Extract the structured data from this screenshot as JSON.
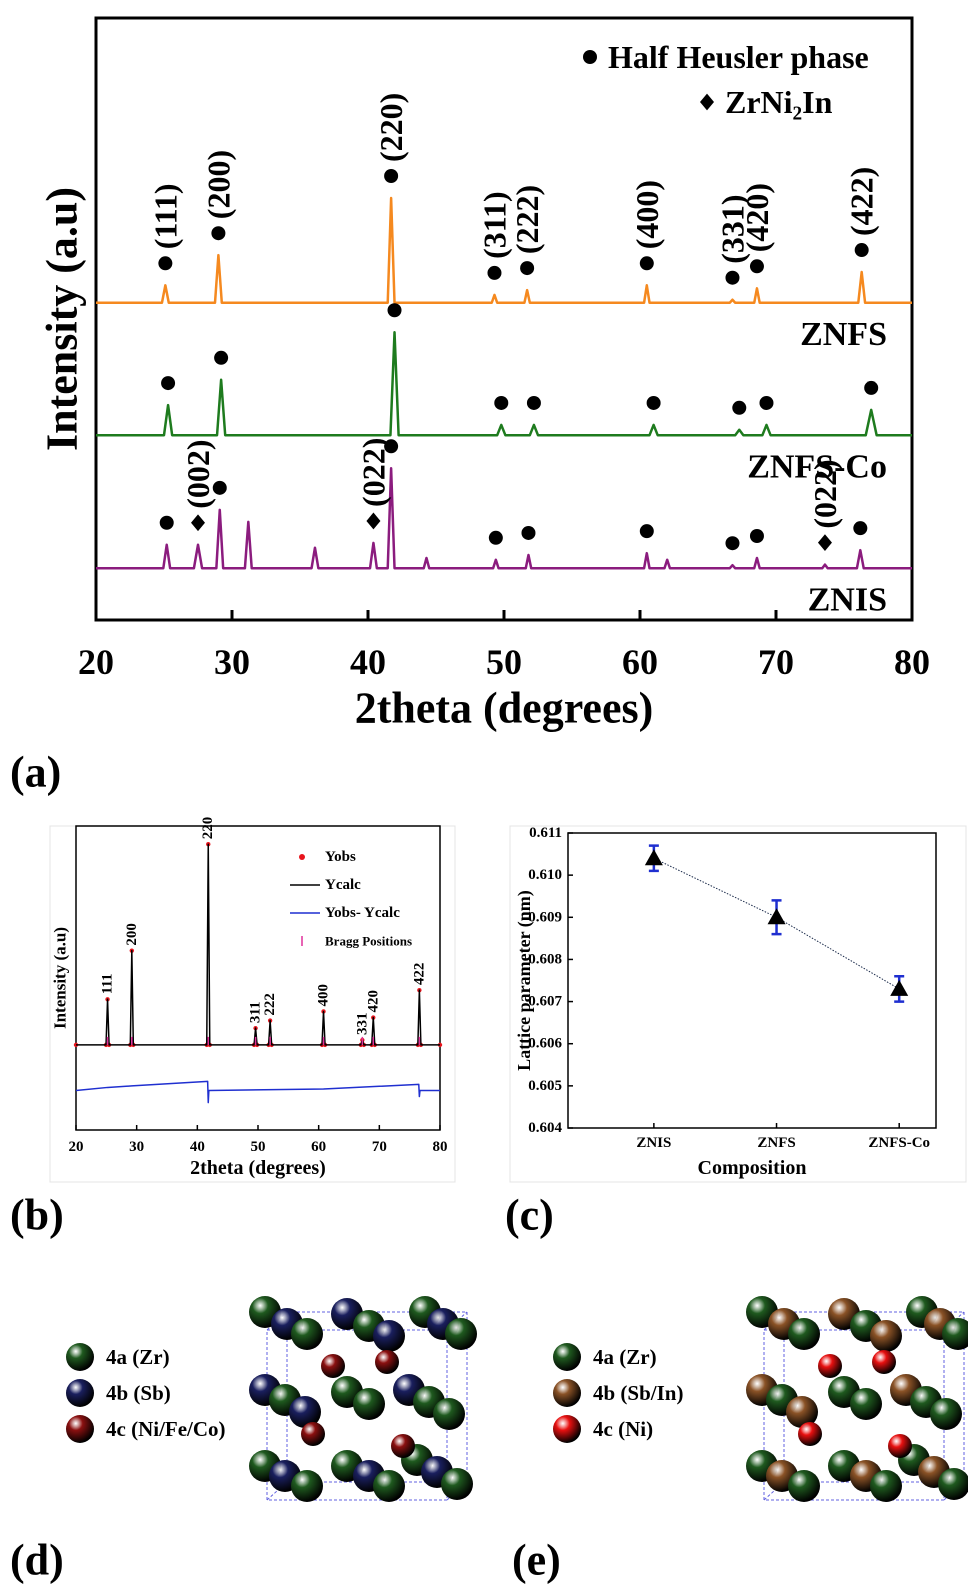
{
  "chart_data": [
    {
      "type": "line",
      "panel_label": "(a)",
      "xlabel": "2theta (degrees)",
      "ylabel": "Intensity (a.u)",
      "xlim": [
        20,
        80
      ],
      "xticks": [
        20,
        30,
        40,
        50,
        60,
        70,
        80
      ],
      "ylim": [
        0,
        100
      ],
      "legend_position": "upper right",
      "legend": [
        {
          "name": "Half Heusler phase",
          "marker": "circle"
        },
        {
          "name": "ZrNi₂In",
          "marker": "diamond"
        }
      ],
      "series": [
        {
          "name": "ZNFS",
          "color": "#f5891f",
          "x": [
            20,
            24.85,
            25.1,
            25.35,
            28.75,
            29,
            29.25,
            41.45,
            41.7,
            41.95,
            49.1,
            49.3,
            49.5,
            51.5,
            51.7,
            51.9,
            60.3,
            60.5,
            60.7,
            66.6,
            66.8,
            67.0,
            68.4,
            68.6,
            68.8,
            76.05,
            76.3,
            76.55,
            80
          ],
          "values": [
            52.7,
            52.7,
            55.6,
            52.7,
            52.7,
            60.6,
            52.7,
            52.7,
            70.1,
            52.7,
            52.7,
            54,
            52.7,
            52.7,
            54.8,
            52.7,
            52.7,
            55.6,
            52.7,
            52.7,
            53.2,
            52.7,
            52.7,
            55.1,
            52.7,
            52.7,
            57.8,
            52.7,
            52.7
          ],
          "peaks": [
            {
              "x": 25.1,
              "marker": "circle",
              "label": "(111)"
            },
            {
              "x": 29,
              "marker": "circle",
              "label": "(200)"
            },
            {
              "x": 41.7,
              "marker": "circle",
              "label": "(220)"
            },
            {
              "x": 49.3,
              "marker": "circle",
              "label": "(311)"
            },
            {
              "x": 51.7,
              "marker": "circle",
              "label": "(222)"
            },
            {
              "x": 60.5,
              "marker": "circle",
              "label": "(400)"
            },
            {
              "x": 66.8,
              "marker": "circle",
              "label": "(331)"
            },
            {
              "x": 68.6,
              "marker": "circle",
              "label": "(420)"
            },
            {
              "x": 76.3,
              "marker": "circle",
              "label": "(422)"
            }
          ]
        },
        {
          "name": "ZNFS-Co",
          "color": "#1e7b1e",
          "x": [
            20,
            25,
            25.3,
            25.6,
            28.9,
            29.2,
            29.5,
            41.65,
            41.95,
            42.25,
            49.5,
            49.8,
            50.1,
            51.9,
            52.2,
            52.5,
            60.7,
            61,
            61.3,
            67,
            67.3,
            67.6,
            69,
            69.3,
            69.6,
            76.6,
            77,
            77.4,
            80
          ],
          "values": [
            30.7,
            30.7,
            35.7,
            30.7,
            30.7,
            39.9,
            30.7,
            30.7,
            47.8,
            30.7,
            30.7,
            32.4,
            30.7,
            30.7,
            32.4,
            30.7,
            30.7,
            32.4,
            30.7,
            30.7,
            31.6,
            30.7,
            30.7,
            32.4,
            30.7,
            30.7,
            34.9,
            30.7,
            30.7
          ],
          "peaks": [
            {
              "x": 25.3,
              "marker": "circle"
            },
            {
              "x": 29.2,
              "marker": "circle"
            },
            {
              "x": 41.95,
              "marker": "circle"
            },
            {
              "x": 49.8,
              "marker": "circle"
            },
            {
              "x": 52.2,
              "marker": "circle"
            },
            {
              "x": 61,
              "marker": "circle"
            },
            {
              "x": 67.3,
              "marker": "circle"
            },
            {
              "x": 69.3,
              "marker": "circle"
            },
            {
              "x": 77,
              "marker": "circle"
            }
          ]
        },
        {
          "name": "ZNIS",
          "color": "#8b1c7e",
          "x": [
            20,
            24.95,
            25.2,
            25.45,
            27.2,
            27.5,
            27.8,
            28.85,
            29.1,
            29.35,
            30.95,
            31.2,
            31.45,
            35.85,
            36.1,
            36.35,
            40.15,
            40.4,
            40.65,
            41.45,
            41.7,
            41.95,
            44.1,
            44.3,
            44.5,
            49.2,
            49.4,
            49.6,
            51.6,
            51.8,
            52,
            60.3,
            60.5,
            60.7,
            61.8,
            62,
            62.2,
            66.6,
            66.8,
            67,
            68.4,
            68.6,
            68.8,
            73.4,
            73.6,
            73.8,
            75.95,
            76.2,
            76.45,
            80
          ],
          "values": [
            8.6,
            8.6,
            12.5,
            8.6,
            8.6,
            12.5,
            8.6,
            8.6,
            18.3,
            8.6,
            8.6,
            16.3,
            8.6,
            8.6,
            12,
            8.6,
            8.6,
            12.8,
            8.6,
            8.6,
            25.2,
            8.6,
            8.6,
            10.3,
            8.6,
            8.6,
            10,
            8.6,
            8.6,
            10.8,
            8.6,
            8.6,
            11.1,
            8.6,
            8.6,
            10,
            8.6,
            8.6,
            9.1,
            8.6,
            8.6,
            10.3,
            8.6,
            8.6,
            9.2,
            8.6,
            8.6,
            11.6,
            8.6,
            8.6
          ],
          "peaks": [
            {
              "x": 25.2,
              "marker": "circle"
            },
            {
              "x": 27.5,
              "marker": "diamond",
              "label": "(002)"
            },
            {
              "x": 29.1,
              "marker": "circle"
            },
            {
              "x": 40.4,
              "marker": "diamond",
              "label": "(022)"
            },
            {
              "x": 41.7,
              "marker": "circle"
            },
            {
              "x": 49.4,
              "marker": "circle"
            },
            {
              "x": 51.8,
              "marker": "circle"
            },
            {
              "x": 60.5,
              "marker": "circle"
            },
            {
              "x": 66.8,
              "marker": "circle"
            },
            {
              "x": 68.6,
              "marker": "circle"
            },
            {
              "x": 73.6,
              "marker": "diamond",
              "label": "(022)"
            },
            {
              "x": 76.2,
              "marker": "circle"
            }
          ]
        }
      ]
    },
    {
      "type": "line",
      "panel_label": "(b)",
      "xlabel": "2theta (degrees)",
      "ylabel": "Intensity (a.u)",
      "xlim": [
        20,
        80
      ],
      "xticks": [
        20,
        30,
        40,
        50,
        60,
        70,
        80
      ],
      "ylim": [
        0,
        100
      ],
      "legend_position": "upper right",
      "series": [
        {
          "name": "Yobs",
          "style": "points",
          "color": "#e8141c",
          "x": [
            20,
            24.95,
            25.2,
            25.45,
            28.95,
            29.2,
            29.45,
            41.55,
            41.8,
            42.05,
            49.35,
            49.6,
            49.85,
            51.75,
            52,
            52.25,
            60.55,
            60.8,
            61.05,
            66.95,
            67.2,
            67.45,
            68.75,
            69,
            69.25,
            76.35,
            76.6,
            76.85,
            80
          ],
          "values": [
            28,
            28,
            43,
            28,
            28,
            59,
            28,
            28,
            94,
            28,
            28,
            33.5,
            28,
            28,
            36,
            28,
            28,
            39,
            28,
            28,
            29.6,
            28,
            28,
            37,
            28,
            28,
            46,
            28,
            28
          ]
        },
        {
          "name": "Ycalc",
          "style": "line",
          "color": "#000000",
          "x": [
            20,
            24.95,
            25.2,
            25.45,
            28.95,
            29.2,
            29.45,
            41.55,
            41.8,
            42.05,
            49.35,
            49.6,
            49.85,
            51.75,
            52,
            52.25,
            60.55,
            60.8,
            61.05,
            66.95,
            67.2,
            67.45,
            68.75,
            69,
            69.25,
            76.35,
            76.6,
            76.85,
            80
          ],
          "values": [
            28,
            28,
            43,
            28,
            28,
            59,
            28,
            28,
            94,
            28,
            28,
            33.5,
            28,
            28,
            36,
            28,
            28,
            39,
            28,
            28,
            29.6,
            28,
            28,
            37,
            28,
            28,
            46,
            28,
            28
          ]
        },
        {
          "name": "Yobs- Ycalc",
          "style": "line",
          "color": "#1f2fd0",
          "x": [
            20,
            25.2,
            29.2,
            41.7,
            41.8,
            41.9,
            60.8,
            76.5,
            76.6,
            76.7,
            80
          ],
          "values": [
            13,
            14,
            14.5,
            16,
            9,
            13,
            13.5,
            15,
            11,
            13,
            13
          ]
        },
        {
          "name": "Bragg Positions",
          "style": "ticks",
          "color": "#e0309a",
          "x": [
            25.2,
            29.2,
            41.8,
            49.6,
            52,
            60.8,
            67.2,
            69,
            76.6
          ]
        }
      ],
      "peak_labels": [
        {
          "x": 25.2,
          "label": "111"
        },
        {
          "x": 29.2,
          "label": "200"
        },
        {
          "x": 41.8,
          "label": "220"
        },
        {
          "x": 49.6,
          "label": "311"
        },
        {
          "x": 52,
          "label": "222"
        },
        {
          "x": 60.8,
          "label": "400"
        },
        {
          "x": 67.2,
          "label": "331"
        },
        {
          "x": 69,
          "label": "420"
        },
        {
          "x": 76.6,
          "label": "422"
        }
      ]
    },
    {
      "type": "errorbar",
      "panel_label": "(c)",
      "xlabel": "Composition",
      "ylabel": "Lattice parameter (nm)",
      "categories": [
        "ZNIS",
        "ZNFS",
        "ZNFS-Co"
      ],
      "values": [
        0.6104,
        0.609,
        0.6073
      ],
      "errors": [
        0.0003,
        0.0004,
        0.0003
      ],
      "color": "#000000",
      "error_color": "#1f2fd0",
      "ylim": [
        0.604,
        0.611
      ],
      "yticks": [
        0.604,
        0.605,
        0.606,
        0.607,
        0.608,
        0.609,
        {
          "value": 0.61,
          "label": "0.610"
        },
        0.611
      ]
    }
  ],
  "structures": [
    {
      "panel_label": "(d)",
      "legend": [
        {
          "name": "4a (Zr)",
          "color": "#1f5a1f"
        },
        {
          "name": "4b (Sb)",
          "color": "#1a1f5e"
        },
        {
          "name": "4c (Ni/Fe/Co)",
          "color": "#8b1010"
        }
      ]
    },
    {
      "panel_label": "(e)",
      "legend": [
        {
          "name": "4a (Zr)",
          "color": "#1f5a1f"
        },
        {
          "name": "4b (Sb/In)",
          "color": "#8a5226"
        },
        {
          "name": "4c (Ni)",
          "color": "#e81010"
        }
      ]
    }
  ]
}
